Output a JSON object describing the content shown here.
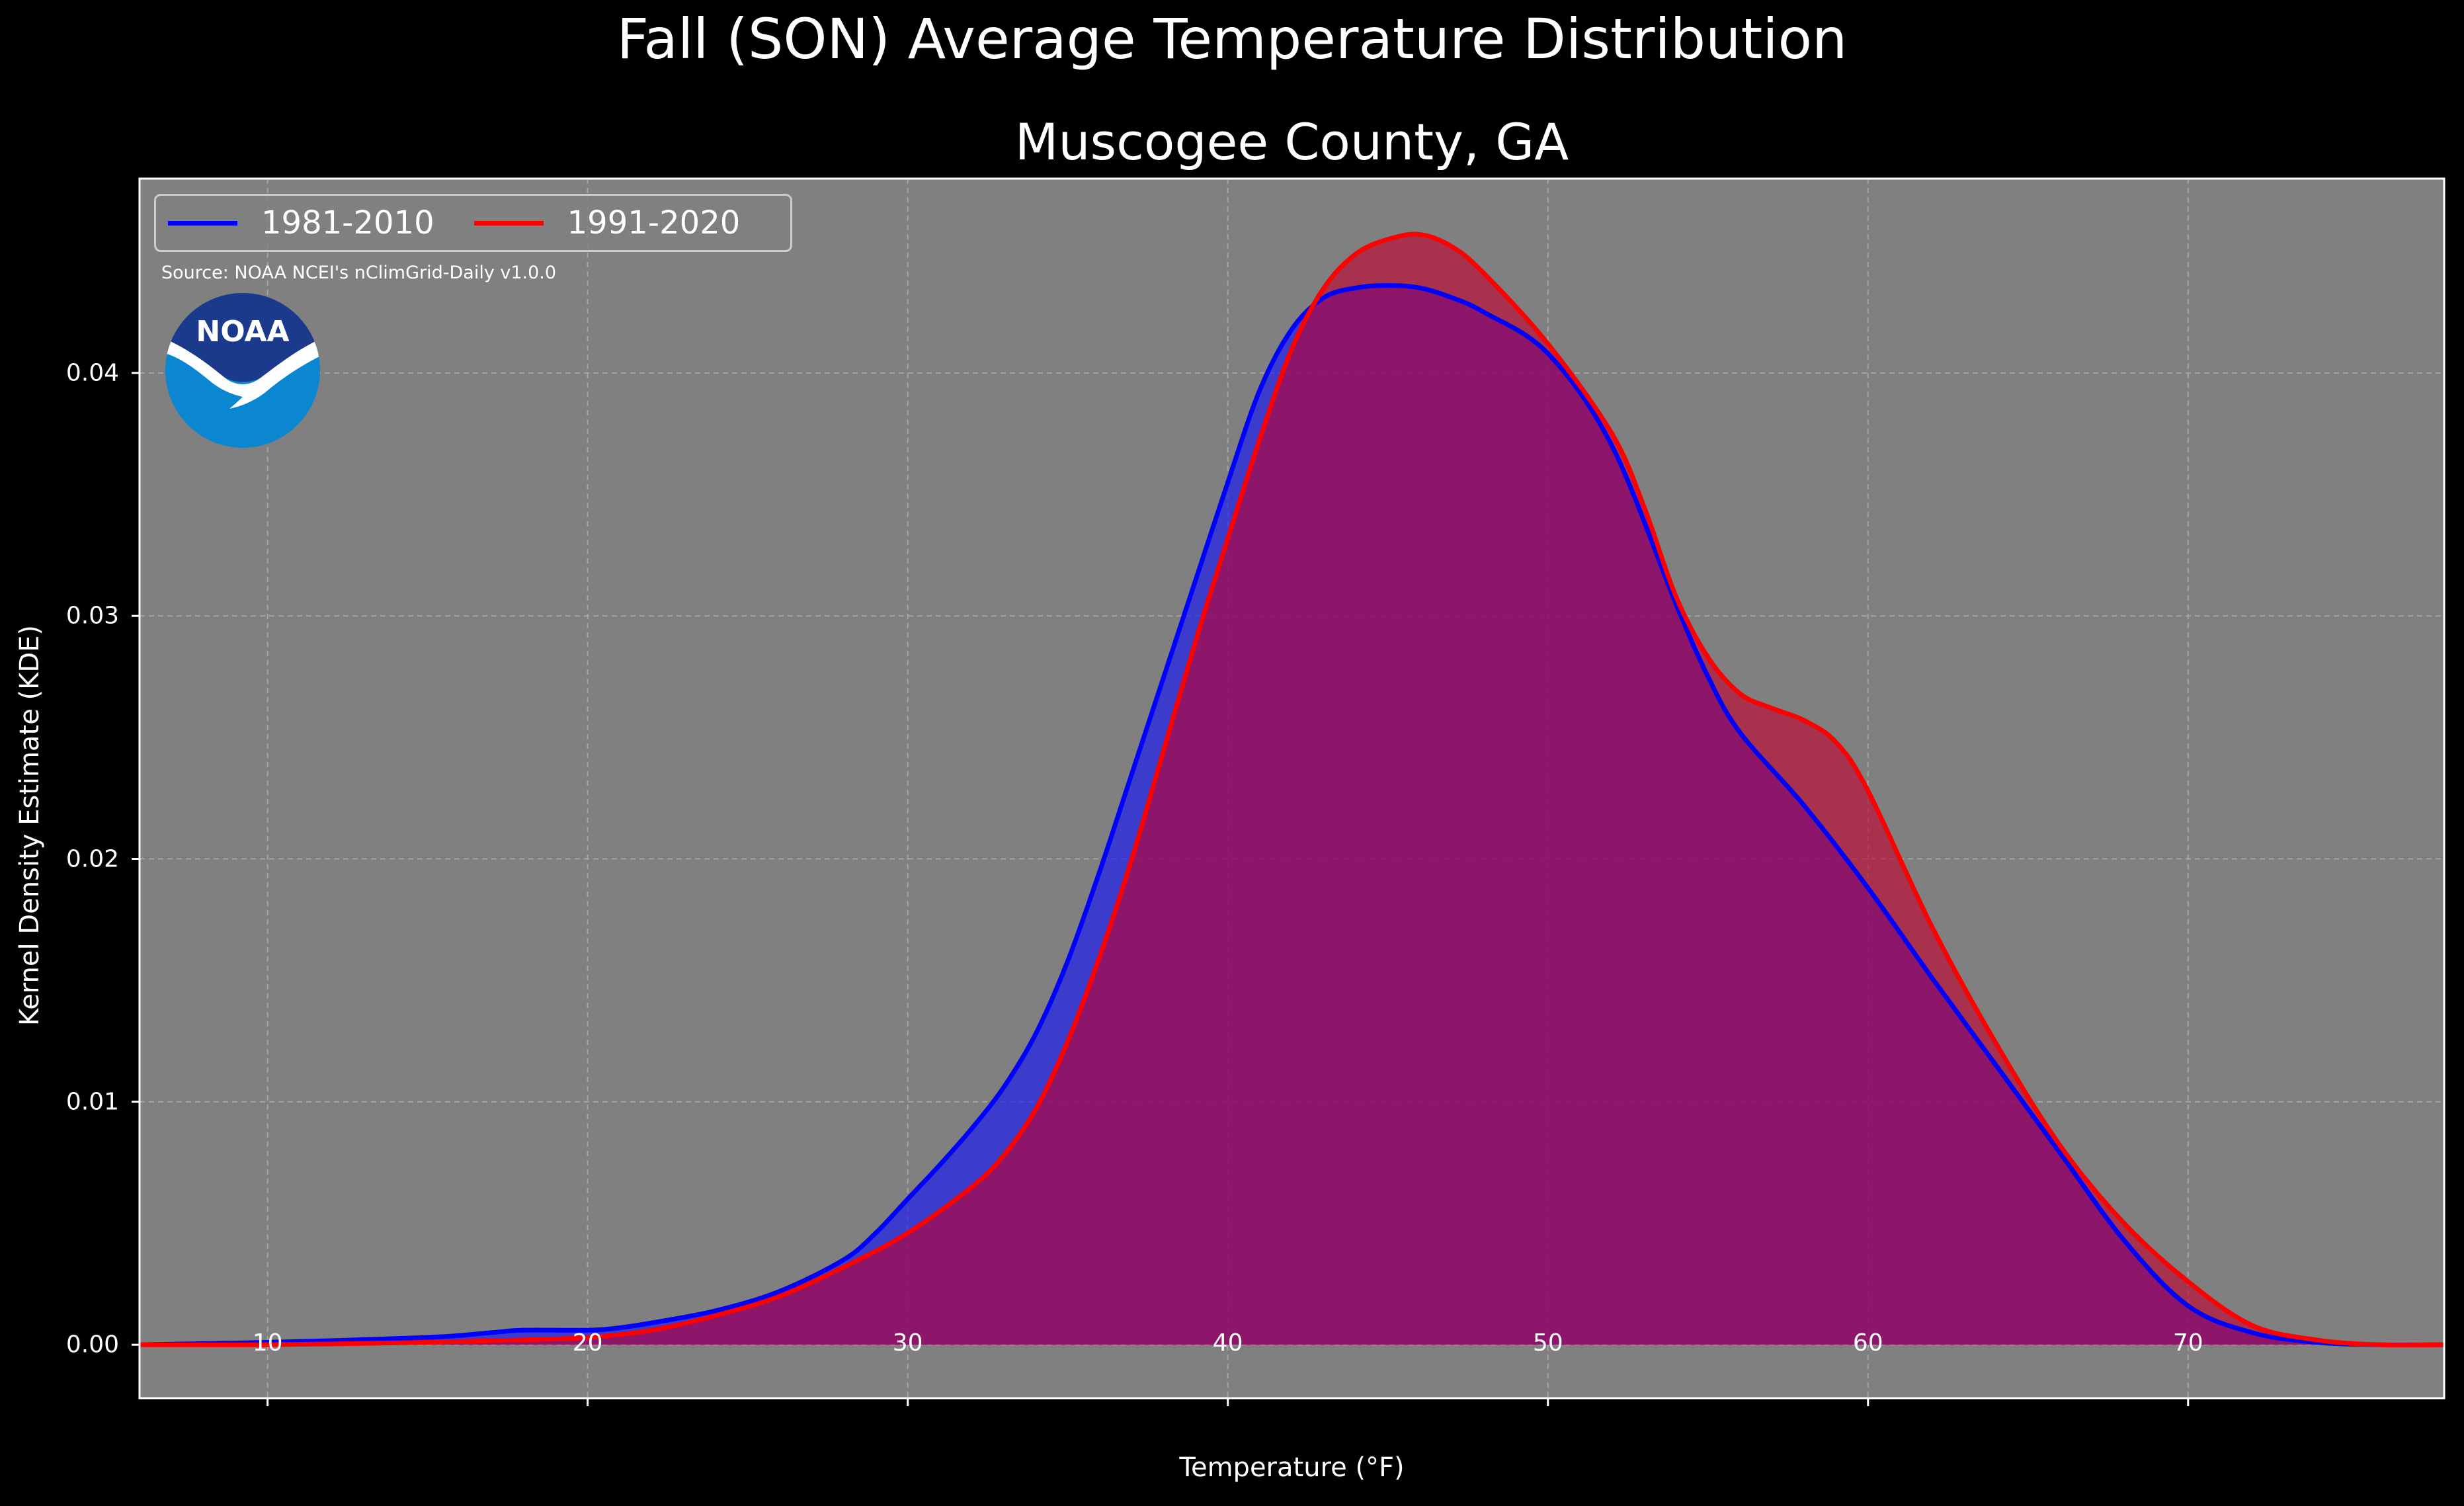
{
  "suptitle": "Fall (SON) Average Temperature Distribution",
  "chart_data": {
    "type": "area",
    "title": "Muscogee County, GA",
    "xlabel": "Temperature (°F)",
    "ylabel": "Kernel Density Estimate (KDE)",
    "xlim": [
      6,
      78
    ],
    "ylim": [
      -0.0022,
      0.048
    ],
    "xticks": [
      10,
      20,
      30,
      40,
      50,
      60,
      70
    ],
    "yticks": [
      0.0,
      0.01,
      0.02,
      0.03,
      0.04
    ],
    "ytick_labels": [
      "0.00",
      "0.01",
      "0.02",
      "0.03",
      "0.04"
    ],
    "grid": true,
    "legend_position": "top-left",
    "source": "Source: NOAA NCEI's nClimGrid-Daily v1.0.0",
    "series": [
      {
        "name": "1981-2010",
        "color": "#0000ff",
        "x": [
          6,
          10,
          15,
          17,
          18,
          20,
          21,
          22,
          24,
          26,
          28,
          29,
          30,
          31,
          32,
          33,
          34,
          35,
          36,
          37,
          38,
          39,
          40,
          41,
          42,
          43,
          44,
          45,
          46,
          47,
          48,
          50,
          52,
          54,
          55,
          56,
          58,
          60,
          62,
          64,
          66,
          68,
          70,
          72,
          74,
          76,
          78
        ],
        "y": [
          0.0,
          0.0001,
          0.0003,
          0.0005,
          0.0006,
          0.0006,
          0.0007,
          0.0009,
          0.0014,
          0.0022,
          0.0035,
          0.0046,
          0.006,
          0.0074,
          0.0089,
          0.0106,
          0.0128,
          0.0158,
          0.0195,
          0.0235,
          0.0275,
          0.0315,
          0.0355,
          0.0393,
          0.0418,
          0.0431,
          0.0435,
          0.0436,
          0.0435,
          0.0431,
          0.0425,
          0.0408,
          0.037,
          0.0305,
          0.0275,
          0.0252,
          0.0222,
          0.0188,
          0.0151,
          0.0115,
          0.0079,
          0.0043,
          0.0016,
          0.0005,
          0.0001,
          0.0,
          0.0
        ]
      },
      {
        "name": "1991-2020",
        "color": "#ff0000",
        "x": [
          6,
          10,
          15,
          18,
          20,
          22,
          24,
          26,
          28,
          30,
          32,
          33,
          34,
          35,
          36,
          37,
          38,
          39,
          40,
          41,
          42,
          43,
          44,
          45,
          46,
          47,
          48,
          50,
          52,
          53,
          54,
          55,
          56,
          57,
          58,
          59,
          60,
          62,
          64,
          66,
          68,
          70,
          72,
          74,
          76,
          78
        ],
        "y": [
          0.0,
          0.0,
          0.0001,
          0.0002,
          0.0003,
          0.0006,
          0.0012,
          0.002,
          0.0032,
          0.0046,
          0.0065,
          0.0078,
          0.0097,
          0.0125,
          0.016,
          0.02,
          0.0245,
          0.029,
          0.0332,
          0.0373,
          0.041,
          0.0435,
          0.0449,
          0.0455,
          0.0457,
          0.0452,
          0.0441,
          0.0412,
          0.0375,
          0.0345,
          0.0308,
          0.0283,
          0.0268,
          0.0262,
          0.0257,
          0.0248,
          0.0228,
          0.0172,
          0.0124,
          0.0082,
          0.005,
          0.0026,
          0.0008,
          0.0002,
          0.0,
          0.0
        ]
      }
    ]
  },
  "logo": {
    "text": "NOAA",
    "colors": {
      "top": "#1b3a8c",
      "bottom": "#0b86d0",
      "bird": "#ffffff"
    }
  },
  "colors": {
    "background": "#000000",
    "plot_bg": "#808080",
    "grid": "#b3b3b3",
    "fill_blue": "#1a1af0",
    "fill_red": "#c0002e"
  }
}
